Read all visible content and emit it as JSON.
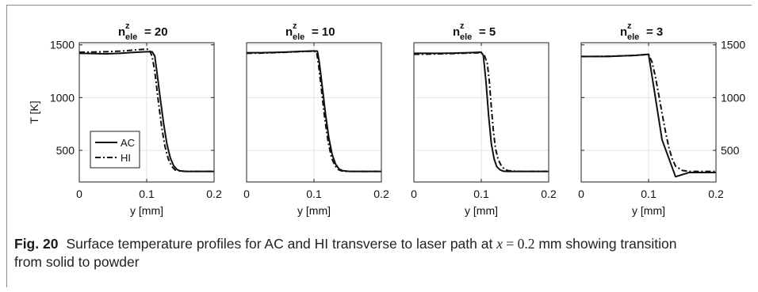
{
  "chart_data": [
    {
      "type": "line",
      "title_main": "n",
      "title_sup": "z",
      "title_sub": "ele",
      "title_value": "= 20",
      "xlabel": "y [mm]",
      "ylabel": "T [K]",
      "xlim": [
        0,
        0.2
      ],
      "ylim": [
        200,
        1520
      ],
      "xticks": [
        "0",
        "0.1",
        "0.2"
      ],
      "yticks": [
        "500",
        "1000",
        "1500"
      ],
      "ytick_side": "left",
      "grid": true,
      "legend": {
        "placement": "bottom-left",
        "entries": [
          "AC",
          "HI"
        ]
      },
      "series": [
        {
          "name": "AC",
          "style": "solid",
          "x": [
            0,
            0.02,
            0.04,
            0.06,
            0.08,
            0.1,
            0.108,
            0.112,
            0.115,
            0.12,
            0.125,
            0.13,
            0.135,
            0.14,
            0.145,
            0.15,
            0.16,
            0.18,
            0.2
          ],
          "y": [
            1420,
            1418,
            1415,
            1420,
            1428,
            1435,
            1435,
            1395,
            1250,
            1000,
            760,
            560,
            430,
            355,
            318,
            305,
            300,
            300,
            300
          ]
        },
        {
          "name": "HI",
          "style": "dashdot",
          "x": [
            0,
            0.02,
            0.04,
            0.06,
            0.08,
            0.1,
            0.104,
            0.108,
            0.112,
            0.117,
            0.122,
            0.127,
            0.132,
            0.137,
            0.142,
            0.15,
            0.16,
            0.18,
            0.2
          ],
          "y": [
            1430,
            1432,
            1435,
            1440,
            1450,
            1460,
            1455,
            1390,
            1250,
            980,
            730,
            540,
            420,
            350,
            315,
            303,
            300,
            300,
            300
          ]
        }
      ]
    },
    {
      "type": "line",
      "title_main": "n",
      "title_sup": "z",
      "title_sub": "ele",
      "title_value": "= 10",
      "xlabel": "y [mm]",
      "ylabel": "",
      "xlim": [
        0,
        0.2
      ],
      "ylim": [
        200,
        1520
      ],
      "xticks": [
        "0",
        "0.1",
        "0.2"
      ],
      "yticks": [],
      "ytick_side": "none",
      "grid": true,
      "series": [
        {
          "name": "AC",
          "style": "solid",
          "x": [
            0,
            0.02,
            0.04,
            0.06,
            0.08,
            0.1,
            0.105,
            0.108,
            0.112,
            0.117,
            0.122,
            0.127,
            0.132,
            0.137,
            0.142,
            0.15,
            0.16,
            0.18,
            0.2
          ],
          "y": [
            1425,
            1425,
            1428,
            1432,
            1438,
            1442,
            1440,
            1330,
            1120,
            850,
            620,
            460,
            370,
            325,
            308,
            302,
            300,
            300,
            300
          ]
        },
        {
          "name": "HI",
          "style": "dashdot",
          "x": [
            0,
            0.02,
            0.04,
            0.06,
            0.08,
            0.1,
            0.104,
            0.107,
            0.111,
            0.116,
            0.121,
            0.126,
            0.131,
            0.136,
            0.141,
            0.15,
            0.16,
            0.18,
            0.2
          ],
          "y": [
            1420,
            1422,
            1425,
            1430,
            1436,
            1440,
            1430,
            1300,
            1080,
            800,
            580,
            430,
            355,
            318,
            305,
            300,
            300,
            300,
            300
          ]
        }
      ]
    },
    {
      "type": "line",
      "title_main": "n",
      "title_sup": "z",
      "title_sub": "ele",
      "title_value": "= 5",
      "xlabel": "y [mm]",
      "ylabel": "",
      "xlim": [
        0,
        0.2
      ],
      "ylim": [
        200,
        1520
      ],
      "xticks": [
        "0",
        "0.1",
        "0.2"
      ],
      "yticks": [],
      "ytick_side": "none",
      "grid": true,
      "series": [
        {
          "name": "AC",
          "style": "solid",
          "x": [
            0,
            0.02,
            0.04,
            0.06,
            0.08,
            0.1,
            0.103,
            0.107,
            0.111,
            0.115,
            0.119,
            0.123,
            0.128,
            0.133,
            0.14,
            0.15,
            0.16,
            0.18,
            0.2
          ],
          "y": [
            1420,
            1420,
            1420,
            1422,
            1425,
            1430,
            1400,
            1150,
            820,
            560,
            420,
            345,
            315,
            302,
            300,
            300,
            300,
            300,
            300
          ]
        },
        {
          "name": "HI",
          "style": "dashdot",
          "x": [
            0,
            0.02,
            0.04,
            0.06,
            0.08,
            0.1,
            0.105,
            0.109,
            0.112,
            0.115,
            0.118,
            0.121,
            0.125,
            0.13,
            0.135,
            0.14,
            0.15,
            0.16,
            0.18,
            0.2
          ],
          "y": [
            1410,
            1412,
            1415,
            1418,
            1422,
            1425,
            1395,
            1320,
            1150,
            900,
            680,
            520,
            415,
            350,
            320,
            308,
            302,
            300,
            300,
            300
          ]
        }
      ]
    },
    {
      "type": "line",
      "title_main": "n",
      "title_sup": "z",
      "title_sub": "ele",
      "title_value": "= 3",
      "xlabel": "y [mm]",
      "ylabel": "",
      "xlim": [
        0,
        0.2
      ],
      "ylim": [
        200,
        1520
      ],
      "xticks": [
        "0",
        "0.1",
        "0.2"
      ],
      "yticks": [
        "500",
        "1000",
        "1500"
      ],
      "ytick_side": "right",
      "grid": true,
      "series": [
        {
          "name": "AC",
          "style": "solid",
          "x": [
            0,
            0.02,
            0.04,
            0.06,
            0.08,
            0.1,
            0.12,
            0.14,
            0.16,
            0.18,
            0.2
          ],
          "y": [
            1390,
            1390,
            1390,
            1395,
            1400,
            1410,
            600,
            250,
            290,
            290,
            290
          ]
        },
        {
          "name": "HI",
          "style": "dashdot",
          "x": [
            0,
            0.02,
            0.04,
            0.06,
            0.08,
            0.1,
            0.105,
            0.11,
            0.115,
            0.12,
            0.125,
            0.13,
            0.135,
            0.14,
            0.15,
            0.16,
            0.18,
            0.2
          ],
          "y": [
            1390,
            1390,
            1392,
            1395,
            1400,
            1410,
            1340,
            1200,
            1030,
            850,
            680,
            530,
            420,
            350,
            310,
            300,
            300,
            300
          ]
        }
      ]
    }
  ],
  "caption": {
    "label": "Fig. 20",
    "text_1": "Surface temperature profiles for AC and HI transverse to laser path at ",
    "var_x": "x",
    "equals": " = 0.2",
    "unit": " mm showing transition",
    "text_2": "from solid to powder"
  }
}
